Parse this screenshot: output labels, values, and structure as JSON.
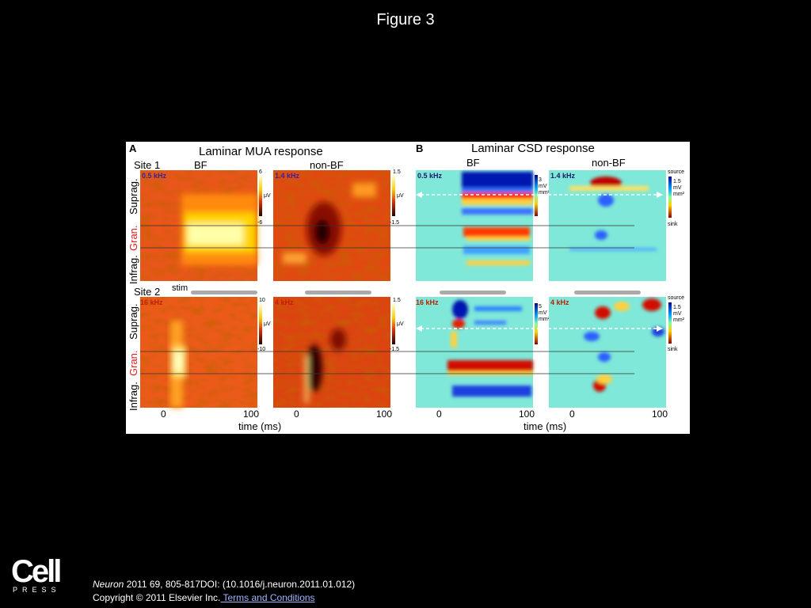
{
  "slide": {
    "title": "Figure 3",
    "citation": {
      "journal": "Neuron",
      "details": " 2011 69, 805-817DOI: (10.1016/j.neuron.2011.01.012)"
    },
    "copyright": "Copyright © 2011 Elsevier Inc.",
    "terms_link": " Terms and Conditions",
    "publisher_logo": {
      "word": "Cell",
      "subword": "PRESS"
    }
  },
  "figure": {
    "panel_a": {
      "letter": "A",
      "title": "Laminar MUA response",
      "col_bf": "BF",
      "col_nonbf": "non-BF",
      "site1": "Site 1",
      "site2": "Site 2",
      "stim": "stim",
      "freq_s1_bf": "0.5 kHz",
      "freq_s1_nonbf": "1.4 kHz",
      "freq_s2_bf": "16 kHz",
      "freq_s2_nonbf": "4 kHz",
      "scale_s1_bf_max": "6",
      "scale_s1_bf_min": "-6",
      "scale_s1_nonbf_max": "1.5",
      "scale_s1_nonbf_min": "-1.5",
      "scale_s2_bf_max": "10",
      "scale_s2_bf_min": "-10",
      "scale_s2_nonbf_max": "1.5",
      "scale_s2_nonbf_min": "-1.5",
      "unit": "μV",
      "x_ticks": [
        "0",
        "100",
        "0",
        "100"
      ],
      "xlabel": "time (ms)"
    },
    "panel_b": {
      "letter": "B",
      "title": "Laminar CSD response",
      "col_bf": "BF",
      "col_nonbf": "non-BF",
      "freq_s1_bf": "0.5 kHz",
      "freq_s1_nonbf": "1.4 kHz",
      "freq_s2_bf": "16 kHz",
      "freq_s2_nonbf": "4 kHz",
      "scale_bf_s1": [
        "3",
        "mV",
        "mm²"
      ],
      "scale_bf_s2": [
        "5",
        "mV",
        "mm²"
      ],
      "source": "source",
      "sink": "sink",
      "scale_nonbf": [
        "1.5",
        "mV",
        "mm²"
      ],
      "x_ticks": [
        "0",
        "100",
        "0",
        "100"
      ],
      "xlabel": "time (ms)"
    },
    "layers": {
      "supra": "Suprag.",
      "gran": "Gran.",
      "infra": "Infrag."
    }
  }
}
